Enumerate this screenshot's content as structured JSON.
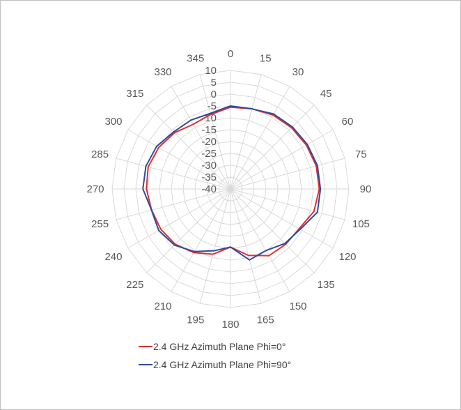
{
  "chart_data": {
    "type": "radar",
    "angles": [
      0,
      15,
      30,
      45,
      60,
      75,
      90,
      105,
      120,
      135,
      150,
      165,
      180,
      195,
      210,
      225,
      240,
      255,
      270,
      285,
      300,
      315,
      330,
      345
    ],
    "radial_ticks": [
      10,
      5,
      0,
      -5,
      -10,
      -15,
      -20,
      -25,
      -30,
      -35,
      -40
    ],
    "rlim": [
      -40,
      10
    ],
    "grid": true,
    "legend_position": "bottom",
    "series": [
      {
        "name": "2.4 GHz Azimuth Plane Phi=0°",
        "color": "#e03030",
        "values": [
          -5.5,
          -5.0,
          -4.0,
          -3.5,
          -3.0,
          -2.5,
          -2.5,
          -3.5,
          -6.5,
          -7.0,
          -7.5,
          -11.0,
          -15.5,
          -11.5,
          -9.0,
          -7.0,
          -6.0,
          -5.5,
          -4.5,
          -4.0,
          -5.0,
          -6.5,
          -8.5,
          -7.5
        ]
      },
      {
        "name": "2.4 GHz Azimuth Plane Phi=90°",
        "color": "#2f4a9e",
        "values": [
          -5.0,
          -5.0,
          -3.5,
          -3.0,
          -2.5,
          -2.0,
          -2.0,
          -2.0,
          -6.0,
          -7.5,
          -10.0,
          -9.0,
          -15.5,
          -13.0,
          -9.5,
          -6.5,
          -5.0,
          -5.5,
          -3.0,
          -3.0,
          -4.0,
          -6.0,
          -6.5,
          -7.0
        ]
      }
    ]
  }
}
